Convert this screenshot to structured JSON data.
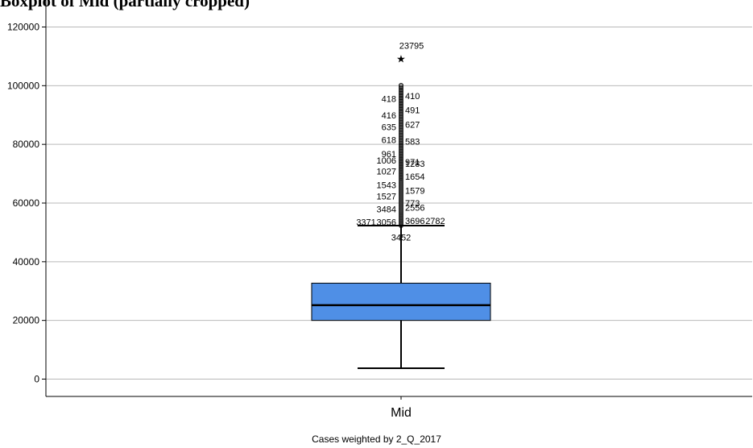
{
  "heading": "Boxplot of Mid (partially cropped)",
  "footnote": "Cases weighted by 2_Q_2017",
  "chart_data": {
    "type": "boxplot",
    "categories": [
      "Mid"
    ],
    "ylim": [
      -5000,
      125000
    ],
    "yticks": [
      0,
      20000,
      40000,
      60000,
      80000,
      100000,
      120000
    ],
    "ytick_labels": [
      "0",
      "20000",
      "40000",
      "60000",
      "80000",
      "100000",
      "120000"
    ],
    "grid": true,
    "box": {
      "whisker_low": 3700,
      "q1": 20000,
      "median": 25200,
      "q3": 32700,
      "whisker_high": 52300
    },
    "box_color": "#4f8fe6",
    "extreme_outliers": [
      {
        "label": "23795",
        "value": 109800
      }
    ],
    "outlier_range": [
      52300,
      100500
    ],
    "outlier_labels": [
      {
        "label": "418",
        "value": 95500,
        "side": "left"
      },
      {
        "label": "410",
        "value": 96500,
        "side": "right"
      },
      {
        "label": "491",
        "value": 91700,
        "side": "right"
      },
      {
        "label": "416",
        "value": 90000,
        "side": "left"
      },
      {
        "label": "627",
        "value": 86800,
        "side": "right"
      },
      {
        "label": "635",
        "value": 86000,
        "side": "left"
      },
      {
        "label": "618",
        "value": 81500,
        "side": "left"
      },
      {
        "label": "583",
        "value": 81000,
        "side": "right"
      },
      {
        "label": "961",
        "value": 76700,
        "side": "left"
      },
      {
        "label": "1006",
        "value": 74600,
        "side": "left"
      },
      {
        "label": "1283",
        "value": 73500,
        "side": "right"
      },
      {
        "label": "971",
        "value": 74000,
        "side": "right"
      },
      {
        "label": "1027",
        "value": 70800,
        "side": "left"
      },
      {
        "label": "1654",
        "value": 69000,
        "side": "right"
      },
      {
        "label": "1543",
        "value": 66200,
        "side": "left"
      },
      {
        "label": "1579",
        "value": 64200,
        "side": "right"
      },
      {
        "label": "1527",
        "value": 62300,
        "side": "left"
      },
      {
        "label": "773",
        "value": 60000,
        "side": "right"
      },
      {
        "label": "2556",
        "value": 58500,
        "side": "right"
      },
      {
        "label": "3484",
        "value": 58000,
        "side": "left"
      },
      {
        "label": "3696",
        "value": 54000,
        "side": "right"
      },
      {
        "label": "2782",
        "value": 54000,
        "side": "right"
      },
      {
        "label": "3056",
        "value": 53500,
        "side": "left"
      },
      {
        "label": "3371",
        "value": 53500,
        "side": "left"
      },
      {
        "label": "3452",
        "value": 48300,
        "side": "below"
      }
    ]
  }
}
